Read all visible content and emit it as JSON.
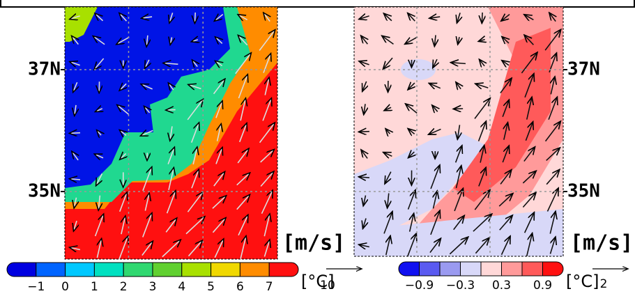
{
  "panels": [
    {
      "lat_labels": [
        "37N",
        "35N"
      ],
      "unit_label": "[m/s]",
      "colorbar": {
        "colors": [
          "#0000e0",
          "#0064ff",
          "#00c8ff",
          "#00e0c0",
          "#30d870",
          "#60d030",
          "#a8e000",
          "#f0d800",
          "#ff8c00",
          "#ff1010"
        ],
        "tick_labels": [
          "−1",
          "0",
          "1",
          "2",
          "3",
          "4",
          "5",
          "6",
          "7"
        ],
        "unit": "[°C]"
      },
      "vector_reference": "10"
    },
    {
      "lat_labels": [
        "37N",
        "35N"
      ],
      "unit_label": "[m/s]",
      "colorbar": {
        "colors": [
          "#1010f0",
          "#5a5af0",
          "#9a9af0",
          "#d8d8f8",
          "#ffd8d8",
          "#ff9a9a",
          "#ff5a5a",
          "#ff1010"
        ],
        "tick_labels": [
          "−0.9",
          "−0.3",
          "0.3",
          "0.9"
        ],
        "unit": "[°C]"
      },
      "vector_reference": "2"
    }
  ]
}
